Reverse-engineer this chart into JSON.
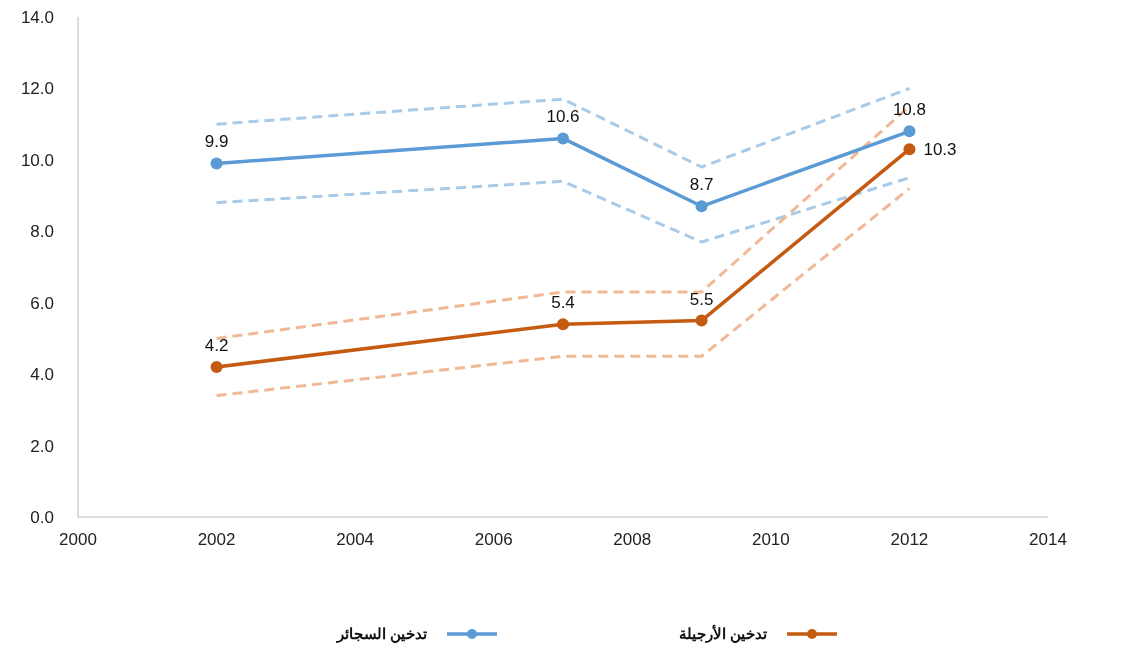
{
  "chart_data": {
    "type": "line",
    "x": [
      2002,
      2007,
      2009,
      2012
    ],
    "series": [
      {
        "name": "تدخين السجائر",
        "color": "#5b9bd5",
        "values": [
          9.9,
          10.6,
          8.7,
          10.8
        ],
        "value_labels": [
          "9.9",
          "10.6",
          "8.7",
          "10.8"
        ]
      },
      {
        "name": "تدخين الأرجيلة",
        "color": "#c55a11",
        "values": [
          4.2,
          5.4,
          5.5,
          10.3
        ],
        "value_labels": [
          "4.2",
          "5.4",
          "5.5",
          "10.3"
        ]
      },
      {
        "color": "#a9cbea",
        "values": [
          8.8,
          9.4,
          7.7,
          9.5
        ],
        "line_style": "dashed",
        "marker": "none"
      },
      {
        "color": "#a9cbea",
        "values": [
          11.0,
          11.7,
          9.8,
          12.0
        ],
        "line_style": "dashed",
        "marker": "none"
      },
      {
        "color": "#f2b896",
        "values": [
          3.4,
          4.5,
          4.5,
          9.2
        ],
        "line_style": "dashed",
        "marker": "none"
      },
      {
        "color": "#f2b896",
        "values": [
          5.0,
          6.3,
          6.3,
          11.5
        ],
        "line_style": "dashed",
        "marker": "none"
      }
    ],
    "xlim": [
      2000,
      2014
    ],
    "xticks": [
      2000,
      2002,
      2004,
      2006,
      2008,
      2010,
      2012,
      2014
    ],
    "ylim": [
      0,
      14
    ],
    "yticks": [
      {
        "value": 0,
        "label": "0.0"
      },
      {
        "value": 2,
        "label": "2.0"
      },
      {
        "value": 4,
        "label": "4.0"
      },
      {
        "value": 6,
        "label": "6.0"
      },
      {
        "value": 8,
        "label": "8.0"
      },
      {
        "value": 10,
        "label": "10.0"
      },
      {
        "value": 12,
        "label": "12.0"
      },
      {
        "value": 14,
        "label": "14.0"
      }
    ],
    "marker": "circle",
    "line_style": "solid",
    "grid": false,
    "legend": "bottom"
  }
}
